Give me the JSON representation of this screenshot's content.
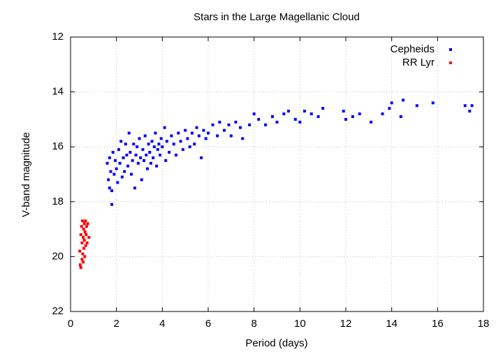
{
  "chart_data": {
    "type": "scatter",
    "title": "Stars in the Large Magellanic Cloud",
    "x_label": "Period (days)",
    "y_label": "V-band magnitude",
    "xlim": [
      0,
      18
    ],
    "xticks": [
      0,
      2,
      4,
      6,
      8,
      10,
      12,
      14,
      16,
      18
    ],
    "ylim": [
      12,
      22
    ],
    "yticks": [
      12,
      14,
      16,
      18,
      20,
      22
    ],
    "y_reversed": true,
    "grid": true,
    "legend": "top-right",
    "series": [
      {
        "name": "Cepheids",
        "color": "#0000ff",
        "x": [
          1.6,
          1.65,
          1.7,
          1.7,
          1.75,
          1.8,
          1.8,
          1.85,
          1.9,
          1.95,
          2.0,
          2.05,
          2.1,
          2.15,
          2.2,
          2.25,
          2.3,
          2.35,
          2.4,
          2.45,
          2.5,
          2.55,
          2.6,
          2.65,
          2.7,
          2.75,
          2.8,
          2.85,
          2.9,
          2.95,
          3.0,
          3.05,
          3.1,
          3.15,
          3.2,
          3.25,
          3.3,
          3.35,
          3.4,
          3.45,
          3.5,
          3.55,
          3.6,
          3.65,
          3.7,
          3.75,
          3.8,
          3.85,
          3.9,
          3.95,
          4.0,
          4.1,
          4.15,
          4.2,
          4.3,
          4.4,
          4.5,
          4.6,
          4.7,
          4.8,
          4.9,
          5.0,
          5.1,
          5.2,
          5.3,
          5.4,
          5.5,
          5.6,
          5.7,
          5.8,
          5.9,
          6.0,
          6.2,
          6.4,
          6.5,
          6.7,
          6.9,
          7.0,
          7.2,
          7.4,
          7.5,
          7.8,
          8.0,
          8.2,
          8.5,
          8.8,
          9.0,
          9.3,
          9.5,
          9.8,
          10.0,
          10.2,
          10.5,
          10.8,
          11.0,
          11.9,
          12.0,
          12.3,
          12.6,
          13.1,
          13.6,
          13.9,
          14.0,
          14.4,
          14.5,
          15.1,
          15.8,
          17.2,
          17.4,
          17.5
        ],
        "values": [
          16.6,
          17.2,
          16.4,
          17.5,
          16.9,
          17.6,
          18.1,
          16.2,
          17.0,
          16.5,
          16.8,
          17.3,
          16.1,
          16.6,
          15.8,
          17.1,
          16.4,
          16.9,
          15.9,
          16.3,
          16.7,
          15.5,
          16.2,
          17.0,
          16.5,
          15.9,
          17.5,
          16.3,
          16.0,
          16.6,
          15.7,
          16.4,
          17.2,
          16.1,
          16.5,
          15.6,
          16.3,
          16.8,
          15.9,
          16.2,
          16.6,
          15.8,
          16.4,
          16.0,
          15.5,
          16.7,
          16.1,
          15.9,
          16.3,
          15.7,
          16.0,
          15.3,
          16.5,
          15.8,
          16.2,
          15.6,
          15.9,
          16.3,
          15.5,
          15.8,
          16.1,
          15.4,
          15.7,
          16.0,
          15.5,
          15.9,
          15.3,
          15.6,
          16.4,
          15.4,
          15.7,
          15.5,
          15.2,
          15.6,
          15.1,
          15.4,
          15.2,
          15.6,
          15.1,
          15.3,
          15.7,
          15.2,
          14.8,
          15.0,
          15.2,
          14.9,
          15.1,
          14.8,
          14.7,
          15.0,
          15.1,
          14.7,
          14.8,
          14.9,
          14.6,
          14.7,
          15.0,
          14.9,
          14.8,
          15.1,
          14.8,
          14.6,
          14.4,
          14.9,
          14.3,
          14.5,
          14.4,
          14.5,
          14.7,
          14.5
        ]
      },
      {
        "name": "RR Lyr",
        "color": "#ff0000",
        "x": [
          0.4,
          0.42,
          0.45,
          0.45,
          0.48,
          0.5,
          0.5,
          0.52,
          0.53,
          0.55,
          0.55,
          0.57,
          0.58,
          0.6,
          0.6,
          0.62,
          0.63,
          0.65,
          0.66,
          0.68,
          0.7,
          0.72,
          0.75,
          0.8
        ],
        "values": [
          19.8,
          20.3,
          19.2,
          20.4,
          18.9,
          19.5,
          20.1,
          18.7,
          19.9,
          19.3,
          20.2,
          19.0,
          19.7,
          18.8,
          19.4,
          20.0,
          19.1,
          18.7,
          19.6,
          19.2,
          18.9,
          19.5,
          18.8,
          19.3
        ]
      }
    ]
  }
}
